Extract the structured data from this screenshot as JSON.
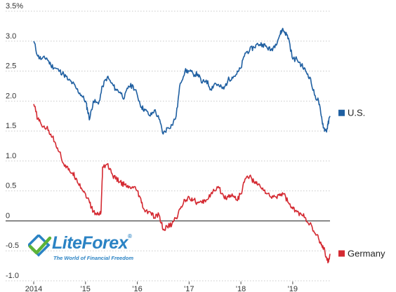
{
  "chart_data": {
    "type": "line",
    "title": "",
    "xlabel": "",
    "ylabel": "",
    "y_ticks": [
      "3.5%",
      "3.0",
      "2.5",
      "2.0",
      "1.5",
      "1.0",
      "0.5",
      "0",
      "-0.5",
      "-1.0"
    ],
    "y_tick_values": [
      3.5,
      3.0,
      2.5,
      2.0,
      1.5,
      1.0,
      0.5,
      0,
      -0.5,
      -1.0
    ],
    "x_ticks": [
      "2014",
      "'15",
      "'16",
      "'17",
      "'18",
      "'19"
    ],
    "x_tick_values": [
      2014,
      2015,
      2016,
      2017,
      2018,
      2019
    ],
    "xlim": [
      2014.0,
      2019.72
    ],
    "ylim": [
      -1.0,
      3.5
    ],
    "grid": "horizontal dotted",
    "legend": "right, next to line ends",
    "series": [
      {
        "name": "U.S.",
        "color": "#1f5fa1",
        "x": [
          2014.0,
          2014.08,
          2014.15,
          2014.25,
          2014.33,
          2014.42,
          2014.5,
          2014.58,
          2014.67,
          2014.75,
          2014.83,
          2014.92,
          2015.0,
          2015.04,
          2015.08,
          2015.15,
          2015.25,
          2015.33,
          2015.42,
          2015.5,
          2015.58,
          2015.67,
          2015.75,
          2015.83,
          2015.92,
          2016.0,
          2016.08,
          2016.15,
          2016.25,
          2016.33,
          2016.42,
          2016.5,
          2016.58,
          2016.67,
          2016.75,
          2016.83,
          2016.92,
          2017.0,
          2017.08,
          2017.17,
          2017.25,
          2017.33,
          2017.42,
          2017.5,
          2017.58,
          2017.67,
          2017.75,
          2017.83,
          2017.92,
          2018.0,
          2018.08,
          2018.17,
          2018.25,
          2018.33,
          2018.42,
          2018.5,
          2018.58,
          2018.67,
          2018.75,
          2018.8,
          2018.85,
          2018.92,
          2019.0,
          2019.08,
          2019.17,
          2019.25,
          2019.33,
          2019.42,
          2019.5,
          2019.55,
          2019.6,
          2019.65,
          2019.68,
          2019.72
        ],
        "y": [
          3.0,
          2.75,
          2.7,
          2.72,
          2.6,
          2.55,
          2.5,
          2.45,
          2.35,
          2.3,
          2.2,
          2.1,
          2.0,
          1.85,
          1.7,
          2.0,
          1.95,
          2.25,
          2.4,
          2.3,
          2.2,
          2.15,
          2.05,
          2.25,
          2.25,
          2.1,
          1.9,
          1.85,
          1.75,
          1.85,
          1.7,
          1.45,
          1.55,
          1.6,
          1.75,
          2.3,
          2.5,
          2.5,
          2.45,
          2.45,
          2.3,
          2.35,
          2.2,
          2.3,
          2.25,
          2.2,
          2.35,
          2.4,
          2.45,
          2.55,
          2.8,
          2.85,
          2.9,
          2.95,
          2.95,
          2.9,
          2.85,
          2.95,
          3.1,
          3.2,
          3.15,
          3.05,
          2.7,
          2.7,
          2.6,
          2.5,
          2.4,
          2.1,
          2.0,
          1.75,
          1.55,
          1.5,
          1.6,
          1.75
        ]
      },
      {
        "name": "Germany",
        "color": "#d42a32",
        "x": [
          2014.0,
          2014.08,
          2014.15,
          2014.25,
          2014.33,
          2014.42,
          2014.5,
          2014.58,
          2014.67,
          2014.75,
          2014.83,
          2014.92,
          2015.0,
          2015.08,
          2015.15,
          2015.25,
          2015.3,
          2015.33,
          2015.42,
          2015.5,
          2015.58,
          2015.67,
          2015.75,
          2015.83,
          2015.92,
          2016.0,
          2016.08,
          2016.15,
          2016.25,
          2016.33,
          2016.42,
          2016.5,
          2016.58,
          2016.67,
          2016.75,
          2016.83,
          2016.92,
          2017.0,
          2017.08,
          2017.17,
          2017.25,
          2017.33,
          2017.42,
          2017.5,
          2017.58,
          2017.67,
          2017.75,
          2017.83,
          2017.92,
          2018.0,
          2018.08,
          2018.17,
          2018.25,
          2018.33,
          2018.42,
          2018.5,
          2018.58,
          2018.67,
          2018.75,
          2018.83,
          2018.92,
          2019.0,
          2019.08,
          2019.17,
          2019.25,
          2019.33,
          2019.42,
          2019.5,
          2019.55,
          2019.6,
          2019.65,
          2019.68,
          2019.72
        ],
        "y": [
          1.95,
          1.7,
          1.6,
          1.55,
          1.45,
          1.3,
          1.15,
          0.95,
          0.85,
          0.8,
          0.7,
          0.55,
          0.45,
          0.3,
          0.15,
          0.1,
          0.15,
          0.9,
          0.95,
          0.8,
          0.7,
          0.65,
          0.6,
          0.55,
          0.55,
          0.5,
          0.3,
          0.15,
          0.15,
          0.05,
          0.1,
          -0.15,
          -0.1,
          -0.05,
          0.05,
          0.2,
          0.35,
          0.4,
          0.35,
          0.3,
          0.3,
          0.35,
          0.45,
          0.5,
          0.55,
          0.4,
          0.4,
          0.45,
          0.35,
          0.45,
          0.7,
          0.75,
          0.65,
          0.6,
          0.55,
          0.45,
          0.4,
          0.4,
          0.45,
          0.45,
          0.3,
          0.2,
          0.15,
          0.1,
          0.05,
          -0.05,
          -0.2,
          -0.3,
          -0.4,
          -0.45,
          -0.6,
          -0.7,
          -0.55
        ]
      }
    ]
  },
  "brand": {
    "name_part1": "Lite",
    "name_part2": "Forex",
    "registered": "®",
    "tagline": "The World of Financial Freedom",
    "colors": {
      "blue": "#2b83c4",
      "green": "#5cb338"
    }
  }
}
